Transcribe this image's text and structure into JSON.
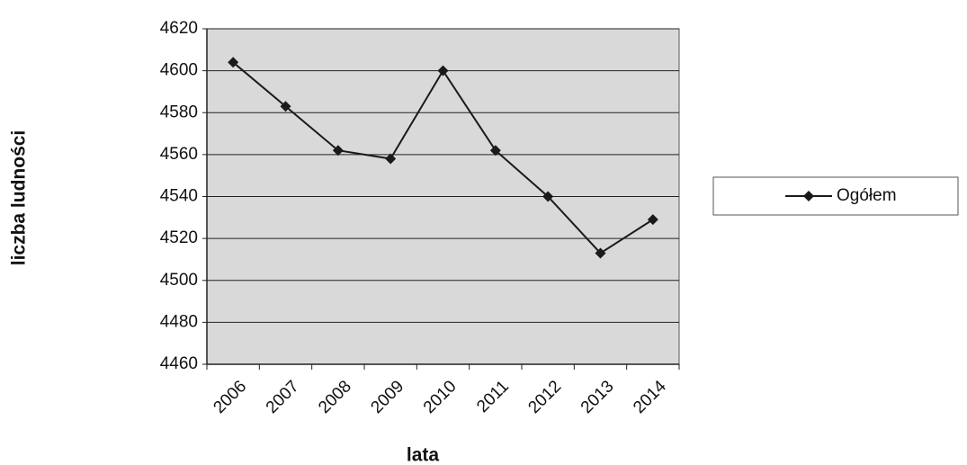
{
  "chart_data": {
    "type": "line",
    "x_label": "lata",
    "y_label": "liczba ludności",
    "categories": [
      "2006",
      "2007",
      "2008",
      "2009",
      "2010",
      "2011",
      "2012",
      "2013",
      "2014"
    ],
    "series": [
      {
        "name": "Ogółem",
        "color": "#1a1a1a",
        "values": [
          4604,
          4583,
          4562,
          4558,
          4600,
          4562,
          4540,
          4513,
          4529
        ]
      }
    ],
    "ylim": [
      4460,
      4620
    ],
    "yticks": [
      4460,
      4480,
      4500,
      4520,
      4540,
      4560,
      4580,
      4600,
      4620
    ],
    "grid": true,
    "legend": "right"
  }
}
